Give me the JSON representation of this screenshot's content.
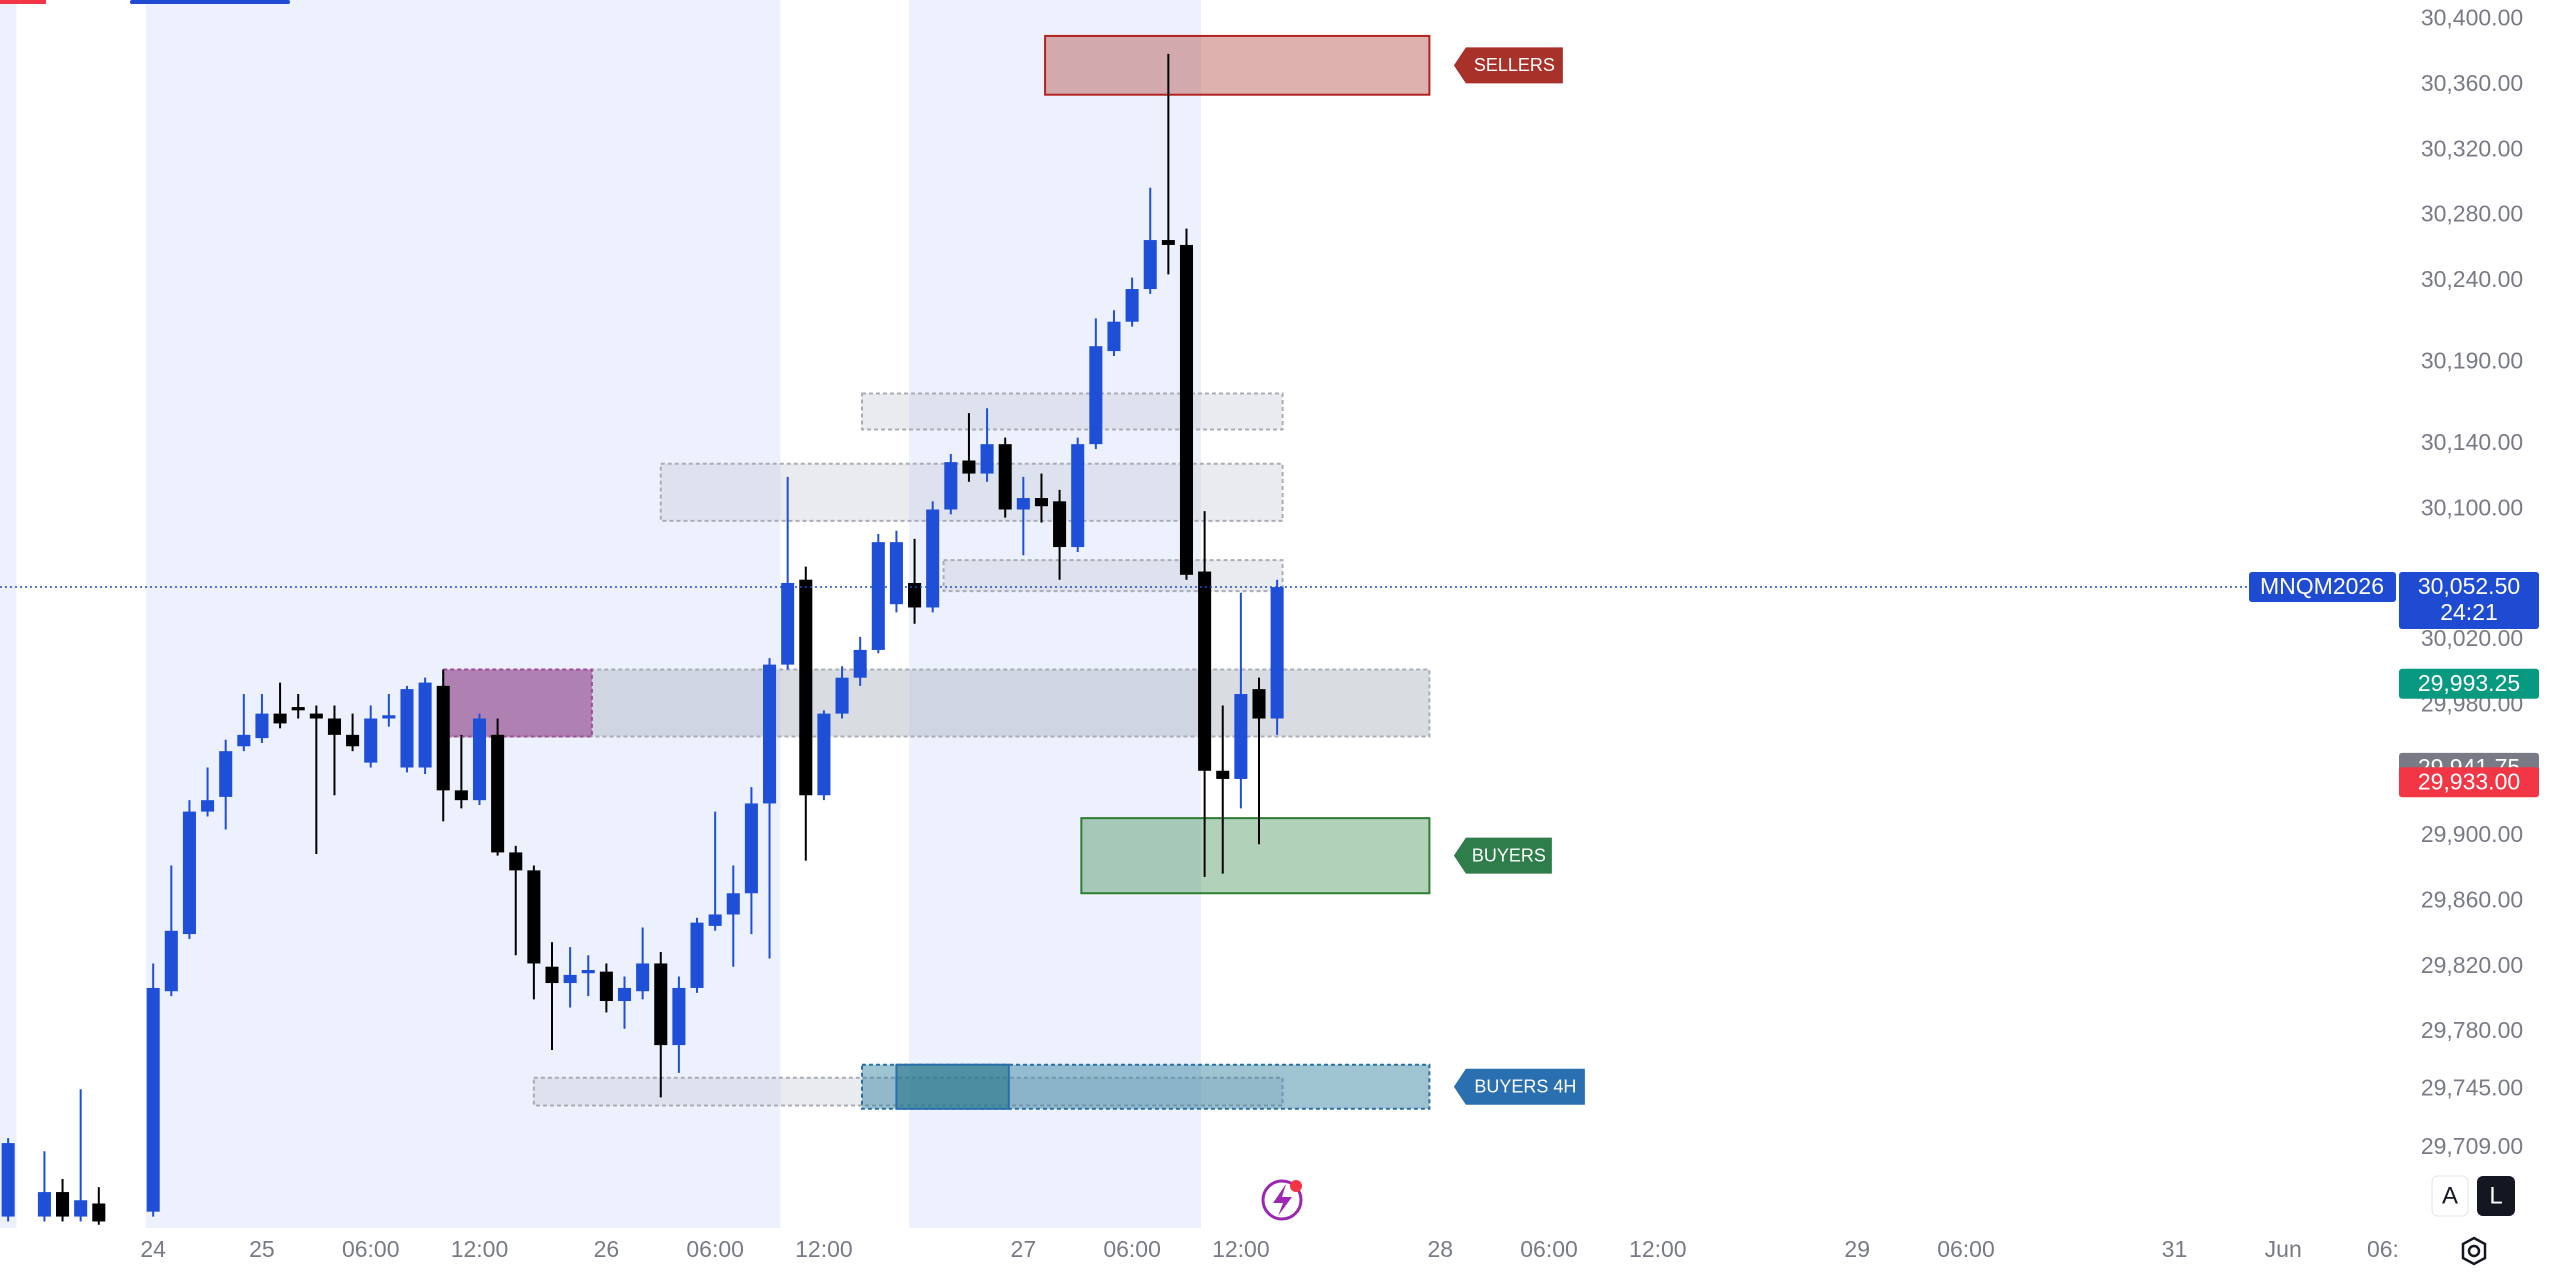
{
  "chart_data": {
    "type": "candlestick",
    "symbol": "MNQM2026",
    "countdown": "24:21",
    "up_color": "#1f4fd6",
    "down_color": "#000000",
    "x": [
      0,
      2,
      3,
      4,
      5,
      8,
      9,
      10,
      11,
      12,
      13,
      14,
      15,
      16,
      17,
      18,
      19,
      20,
      21,
      22,
      23,
      24,
      25,
      26,
      27,
      28,
      29,
      30,
      31,
      32,
      33,
      34,
      35,
      36,
      37,
      38,
      39,
      40,
      41,
      42,
      43,
      44,
      45,
      46,
      47,
      48,
      49,
      50,
      51,
      52,
      53,
      54,
      55,
      56,
      57,
      58,
      59,
      60,
      61,
      62,
      63,
      64,
      65,
      66,
      67,
      68,
      69,
      70
    ],
    "open": [
      29667,
      29667,
      29682,
      29667,
      29675,
      29670,
      29805,
      29840,
      29915,
      29924,
      29955,
      29960,
      29975,
      29979,
      29975,
      29972,
      29962,
      29945,
      29972,
      29942,
      29942,
      29992,
      29928,
      29922,
      29962,
      29890,
      29879,
      29820,
      29810,
      29816,
      29817,
      29799,
      29805,
      29822,
      29772,
      29807,
      29845,
      29852,
      29865,
      29920,
      30005,
      30057,
      29925,
      29975,
      29997,
      30014,
      30042,
      30055,
      30040,
      30100,
      30130,
      30122,
      30140,
      30100,
      30107,
      30105,
      30077,
      30140,
      30197,
      30215,
      30235,
      30265,
      30262,
      30062,
      29940,
      29935,
      29990,
      29972
    ],
    "high": [
      29715,
      29707,
      29690,
      29745,
      29685,
      29822,
      29882,
      29922,
      29942,
      29959,
      29987,
      29987,
      29994,
      29987,
      29980,
      29980,
      29975,
      29980,
      29987,
      29992,
      29997,
      30002,
      29962,
      29975,
      29972,
      29894,
      29882,
      29835,
      29832,
      29827,
      29822,
      29814,
      29844,
      29829,
      29814,
      29850,
      29915,
      29882,
      29930,
      30009,
      30120,
      30065,
      29977,
      30004,
      30022,
      30085,
      30087,
      30082,
      30105,
      30134,
      30159,
      30162,
      30144,
      30120,
      30122,
      30112,
      30144,
      30217,
      30222,
      30242,
      30297,
      30379,
      30272,
      30099,
      29980,
      30049,
      29997,
      30057
    ],
    "low": [
      29664,
      29664,
      29664,
      29664,
      29662,
      29667,
      29802,
      29837,
      29912,
      29904,
      29952,
      29957,
      29966,
      29972,
      29889,
      29925,
      29952,
      29942,
      29967,
      29939,
      29938,
      29909,
      29917,
      29919,
      29888,
      29827,
      29800,
      29769,
      29795,
      29802,
      29792,
      29782,
      29800,
      29740,
      29755,
      29804,
      29842,
      29820,
      29840,
      29825,
      30002,
      29885,
      29922,
      29972,
      29992,
      30012,
      30037,
      30030,
      30037,
      30097,
      30117,
      30117,
      30095,
      30072,
      30092,
      30057,
      30074,
      30137,
      30194,
      30212,
      30232,
      30244,
      30057,
      29875,
      29877,
      29917,
      29895,
      29962
    ],
    "close": [
      29712,
      29682,
      29667,
      29677,
      29664,
      29807,
      29842,
      29915,
      29922,
      29952,
      29962,
      29975,
      29969,
      29977,
      29972,
      29962,
      29955,
      29972,
      29974,
      29990,
      29994,
      29928,
      29922,
      29972,
      29890,
      29879,
      29822,
      29810,
      29815,
      29818,
      29799,
      29807,
      29822,
      29772,
      29807,
      29847,
      29852,
      29865,
      29920,
      30005,
      30055,
      29925,
      29975,
      29997,
      30014,
      30080,
      30080,
      30040,
      30100,
      30129,
      30122,
      30140,
      30100,
      30107,
      30102,
      30077,
      30140,
      30200,
      30215,
      30235,
      30265,
      30262,
      30060,
      29940,
      29935,
      29987,
      29972,
      30052.5
    ],
    "xlim": [
      -0.45,
      131.5
    ],
    "xticks": [
      {
        "value": 8,
        "label": "24"
      },
      {
        "value": 14,
        "label": "25"
      },
      {
        "value": 20,
        "label": "06:00"
      },
      {
        "value": 26,
        "label": "12:00"
      },
      {
        "value": 33,
        "label": "26"
      },
      {
        "value": 39,
        "label": "06:00"
      },
      {
        "value": 45,
        "label": "12:00"
      },
      {
        "value": 56,
        "label": "27"
      },
      {
        "value": 62,
        "label": "06:00"
      },
      {
        "value": 68,
        "label": "12:00"
      },
      {
        "value": 79,
        "label": "28"
      },
      {
        "value": 85,
        "label": "06:00"
      },
      {
        "value": 91,
        "label": "12:00"
      },
      {
        "value": 102,
        "label": "29"
      },
      {
        "value": 108,
        "label": "06:00"
      },
      {
        "value": 119.5,
        "label": "31"
      },
      {
        "value": 125.5,
        "label": "Jun"
      },
      {
        "value": 131,
        "label": "06:"
      }
    ],
    "ylim": [
      29660,
      30412
    ],
    "yticks": [
      {
        "value": 30400,
        "label": "30,400.00"
      },
      {
        "value": 30360,
        "label": "30,360.00"
      },
      {
        "value": 30320,
        "label": "30,320.00"
      },
      {
        "value": 30280,
        "label": "30,280.00"
      },
      {
        "value": 30240,
        "label": "30,240.00"
      },
      {
        "value": 30190,
        "label": "30,190.00"
      },
      {
        "value": 30140,
        "label": "30,140.00"
      },
      {
        "value": 30100,
        "label": "30,100.00"
      },
      {
        "value": 30020,
        "label": "30,020.00"
      },
      {
        "value": 29980,
        "label": "29,980.00"
      },
      {
        "value": 29900,
        "label": "29,900.00"
      },
      {
        "value": 29860,
        "label": "29,860.00"
      },
      {
        "value": 29820,
        "label": "29,820.00"
      },
      {
        "value": 29780,
        "label": "29,780.00"
      },
      {
        "value": 29745,
        "label": "29,745.00"
      },
      {
        "value": 29709,
        "label": "29,709.00"
      }
    ],
    "sessions": [
      [
        -0.45,
        0.45
      ],
      [
        7.6,
        42.6
      ],
      [
        49.7,
        65.8
      ]
    ],
    "session_color": "#edf1fd",
    "zones": [
      {
        "x": [
          29,
          70.3
        ],
        "y": [
          29735,
          29752
        ],
        "fill": "rgba(200,206,214,0.4)",
        "border": "#a9adb5",
        "dash": true
      },
      {
        "x": [
          47.1,
          70.3
        ],
        "y": [
          30149,
          30171
        ],
        "fill": "rgba(200,206,214,0.4)",
        "border": "#a9adb5",
        "dash": true
      },
      {
        "x": [
          36,
          70.3
        ],
        "y": [
          30093,
          30128
        ],
        "fill": "rgba(200,206,214,0.4)",
        "border": "#a9adb5",
        "dash": true
      },
      {
        "x": [
          51.6,
          70.3
        ],
        "y": [
          30050,
          30069
        ],
        "fill": "rgba(200,206,214,0.4)",
        "border": "#a9adb5",
        "dash": true
      },
      {
        "x": [
          24,
          78.4
        ],
        "y": [
          29961,
          30002
        ],
        "fill": "rgba(170,180,190,0.45)",
        "border": "#a9adb5",
        "dash": true
      },
      {
        "x": [
          24,
          32.2
        ],
        "y": [
          29961,
          30002
        ],
        "fill": "rgba(150,60,140,0.55)",
        "border": "#a04a9a",
        "dash": true
      },
      {
        "x": [
          57.2,
          78.4
        ],
        "y": [
          30354,
          30390
        ],
        "fill": "rgba(175,70,60,0.42)",
        "border": "#b22222",
        "dash": false,
        "label": "SELLERS",
        "label_color": "#a8322a"
      },
      {
        "x": [
          59.2,
          78.4
        ],
        "y": [
          29865,
          29911
        ],
        "fill": "rgba(50,135,70,0.38)",
        "border": "#2e7d32",
        "dash": false,
        "label": "BUYERS",
        "label_color": "#2e7d4a"
      },
      {
        "x": [
          47.1,
          78.4
        ],
        "y": [
          29733,
          29760
        ],
        "fill": "rgba(40,125,155,0.45)",
        "border": "#2a6fa8",
        "dash": true,
        "label": "BUYERS 4H",
        "label_color": "#2a6fb0"
      },
      {
        "x": [
          49,
          55.2
        ],
        "y": [
          29733,
          29760
        ],
        "fill": "rgba(25,110,130,0.55)",
        "border": "#2a6fa8",
        "dash": false
      }
    ],
    "price_tags": [
      {
        "value": 30052.5,
        "label": "30,052.50",
        "color": "#1e4bd2"
      },
      {
        "value": 29993.25,
        "label": "29,993.25",
        "color": "#089981"
      },
      {
        "value": 29941.75,
        "label": "29,941.75",
        "color": "#787b86"
      },
      {
        "value": 29933,
        "label": "29,933.00",
        "color": "#f23645"
      }
    ]
  },
  "toolbar": {
    "buttons": [
      "A",
      "L"
    ]
  }
}
